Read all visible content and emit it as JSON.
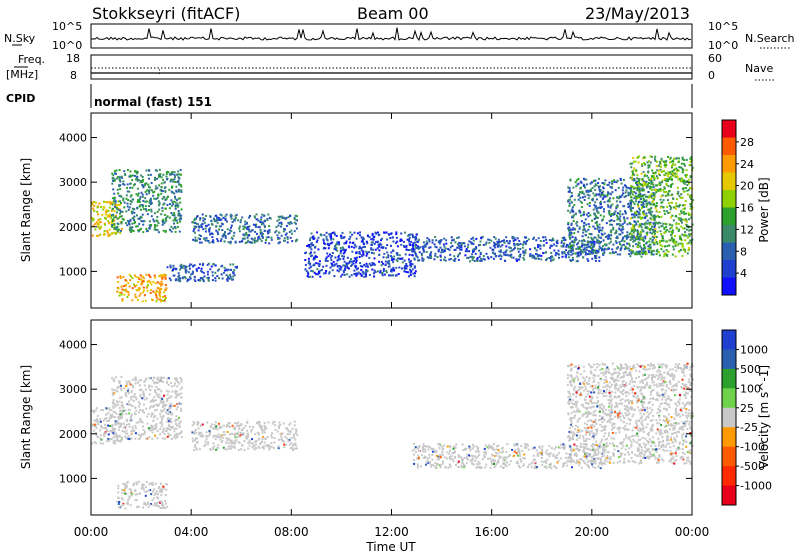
{
  "header": {
    "station": "Stokkseyri (fitACF)",
    "beam": "Beam 00",
    "date": "23/May/2013"
  },
  "sky_noise": {
    "left_label": "N.Sky",
    "right_label": "N.Search",
    "top_tick": "10^5",
    "bottom_tick": "10^0"
  },
  "frequency": {
    "label_line1": "Freq.",
    "label_line2": "[MHz]",
    "top_tick": "18",
    "bottom_tick": "8",
    "right_label": "Nave",
    "right_top_tick": "60",
    "right_bottom_tick": "0"
  },
  "cpid": {
    "label": "CPID",
    "mode": "normal (fast) 151"
  },
  "power_panel": {
    "ylabel": "Slant Range [km]",
    "colorbar_label": "Power [dB]",
    "colorbar_ticks": [
      "28",
      "24",
      "20",
      "16",
      "12",
      "8",
      "4"
    ],
    "colorbar_colors": [
      "#e8001a",
      "#ff5a00",
      "#ff9a00",
      "#e6c800",
      "#8fd000",
      "#2ca02c",
      "#3a8a6a",
      "#2a5fb0",
      "#1f3fd0",
      "#1010ff"
    ]
  },
  "velocity_panel": {
    "ylabel": "Slant Range [km]",
    "colorbar_label": "Velocity [m s^-1]",
    "colorbar_ticks": [
      "1000",
      "500",
      "100",
      "25",
      "-25",
      "-100",
      "-500",
      "-1000"
    ],
    "colorbar_colors": [
      "#1f3fd0",
      "#2a5fb0",
      "#2ca02c",
      "#6ed24a",
      "#c8c8c8",
      "#ff9a00",
      "#ff5a00",
      "#ff2a00",
      "#e8001a"
    ]
  },
  "xaxis": {
    "label": "Time UT",
    "ticks": [
      "00:00",
      "04:00",
      "08:00",
      "12:00",
      "16:00",
      "20:00",
      "00:00"
    ]
  },
  "chart_data": [
    {
      "type": "heatmap",
      "title": "Stokkseyri (fitACF)",
      "xlabel": "Time UT",
      "ylabel": "Slant Range [km]",
      "xlim_hours": [
        0,
        24
      ],
      "ylim_km": [
        180,
        4550
      ],
      "yticks": [
        1000,
        2000,
        3000,
        4000
      ],
      "colorbar": {
        "label": "Power [dB]",
        "ticks": [
          4,
          8,
          12,
          16,
          20,
          24,
          28
        ]
      },
      "features": [
        {
          "t": [
            0.0,
            1.2
          ],
          "range": [
            1800,
            2600
          ],
          "power": 20
        },
        {
          "t": [
            0.8,
            3.6
          ],
          "range": [
            1900,
            3300
          ],
          "power": 10
        },
        {
          "t": [
            1.0,
            3.0
          ],
          "range": [
            350,
            950
          ],
          "power": 22
        },
        {
          "t": [
            3.0,
            5.8
          ],
          "range": [
            800,
            1200
          ],
          "power": 6
        },
        {
          "t": [
            4.0,
            8.2
          ],
          "range": [
            1650,
            2300
          ],
          "power": 7
        },
        {
          "t": [
            8.5,
            13.0
          ],
          "range": [
            900,
            1900
          ],
          "power": 4
        },
        {
          "t": [
            12.8,
            20.5
          ],
          "range": [
            1250,
            1800
          ],
          "power": 6
        },
        {
          "t": [
            19.0,
            22.5
          ],
          "range": [
            1400,
            3100
          ],
          "power": 8
        },
        {
          "t": [
            21.5,
            24.0
          ],
          "range": [
            1350,
            3600
          ],
          "power": 14
        }
      ]
    },
    {
      "type": "heatmap",
      "xlabel": "Time UT",
      "ylabel": "Slant Range [km]",
      "xlim_hours": [
        0,
        24
      ],
      "ylim_km": [
        180,
        4550
      ],
      "yticks": [
        1000,
        2000,
        3000,
        4000
      ],
      "colorbar": {
        "label": "Velocity [m s^-1]",
        "ticks": [
          -1000,
          -500,
          -100,
          -25,
          25,
          100,
          500,
          1000
        ]
      },
      "features": [
        {
          "t": [
            0.0,
            1.2
          ],
          "range": [
            1800,
            2600
          ],
          "velocity": 0
        },
        {
          "t": [
            0.8,
            3.6
          ],
          "range": [
            1900,
            3300
          ],
          "velocity": 0
        },
        {
          "t": [
            1.0,
            3.0
          ],
          "range": [
            350,
            950
          ],
          "velocity": 0
        },
        {
          "t": [
            4.0,
            8.2
          ],
          "range": [
            1650,
            2300
          ],
          "velocity": 0
        },
        {
          "t": [
            12.8,
            20.5
          ],
          "range": [
            1250,
            1800
          ],
          "velocity": 0
        },
        {
          "t": [
            19.0,
            24.0
          ],
          "range": [
            1350,
            3600
          ],
          "velocity": 0
        }
      ]
    }
  ]
}
